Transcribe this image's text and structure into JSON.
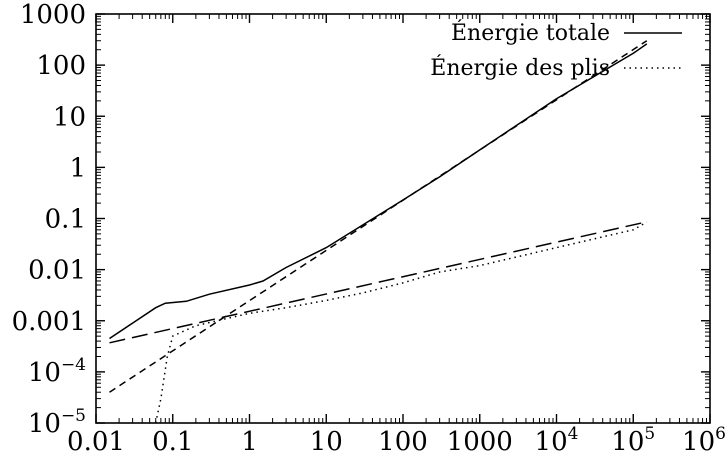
{
  "chart_data": {
    "type": "line",
    "title": "",
    "xlabel": "",
    "ylabel": "",
    "xscale": "log",
    "yscale": "log",
    "xlim": [
      0.01,
      1000000
    ],
    "ylim": [
      1e-05,
      1000
    ],
    "grid": false,
    "legend_position": "top-right",
    "x_ticks": [
      {
        "value": 0.01,
        "label": "0.01"
      },
      {
        "value": 0.1,
        "label": "0.1"
      },
      {
        "value": 1,
        "label": "1"
      },
      {
        "value": 10,
        "label": "10"
      },
      {
        "value": 100,
        "label": "100"
      },
      {
        "value": 1000,
        "label": "1000"
      },
      {
        "value": 10000,
        "base": "10",
        "exp": "4"
      },
      {
        "value": 100000,
        "base": "10",
        "exp": "5"
      },
      {
        "value": 1000000,
        "base": "10",
        "exp": "6"
      }
    ],
    "y_ticks": [
      {
        "value": 1e-05,
        "base": "10",
        "exp": "−5"
      },
      {
        "value": 0.0001,
        "base": "10",
        "exp": "−4"
      },
      {
        "value": 0.001,
        "label": "0.001"
      },
      {
        "value": 0.01,
        "label": "0.01"
      },
      {
        "value": 0.1,
        "label": "0.1"
      },
      {
        "value": 1,
        "label": "1"
      },
      {
        "value": 10,
        "label": "10"
      },
      {
        "value": 100,
        "label": "100"
      },
      {
        "value": 1000,
        "label": "1000"
      }
    ],
    "series": [
      {
        "name": "Énergie totale",
        "style": "solid",
        "in_legend": true,
        "points": [
          [
            0.015,
            0.00045
          ],
          [
            0.03,
            0.0009
          ],
          [
            0.06,
            0.0018
          ],
          [
            0.08,
            0.0022
          ],
          [
            0.15,
            0.0024
          ],
          [
            0.3,
            0.0033
          ],
          [
            1,
            0.005
          ],
          [
            1.5,
            0.006
          ],
          [
            3,
            0.011
          ],
          [
            10,
            0.027
          ],
          [
            30,
            0.075
          ],
          [
            100,
            0.23
          ],
          [
            300,
            0.65
          ],
          [
            1000,
            2.2
          ],
          [
            10000,
            22
          ],
          [
            100000,
            170
          ],
          [
            150000,
            260
          ]
        ]
      },
      {
        "name": "Énergie des plis",
        "style": "dotted",
        "in_legend": true,
        "points": [
          [
            0.06,
            1e-05
          ],
          [
            0.07,
            3e-05
          ],
          [
            0.085,
            0.0002
          ],
          [
            0.1,
            0.0005
          ],
          [
            0.2,
            0.0008
          ],
          [
            0.5,
            0.0011
          ],
          [
            1,
            0.0014
          ],
          [
            3,
            0.0018
          ],
          [
            10,
            0.0025
          ],
          [
            30,
            0.0035
          ],
          [
            100,
            0.0055
          ],
          [
            300,
            0.009
          ],
          [
            1000,
            0.012
          ],
          [
            10000,
            0.027
          ],
          [
            100000,
            0.06
          ],
          [
            150000,
            0.085
          ]
        ]
      },
      {
        "name": "",
        "style": "long-dash",
        "in_legend": false,
        "points": [
          [
            0.015,
            0.00037
          ],
          [
            150000,
            0.086
          ]
        ]
      },
      {
        "name": "",
        "style": "short-dash",
        "in_legend": false,
        "points": [
          [
            0.015,
            4e-05
          ],
          [
            150000,
            300
          ]
        ]
      }
    ]
  }
}
